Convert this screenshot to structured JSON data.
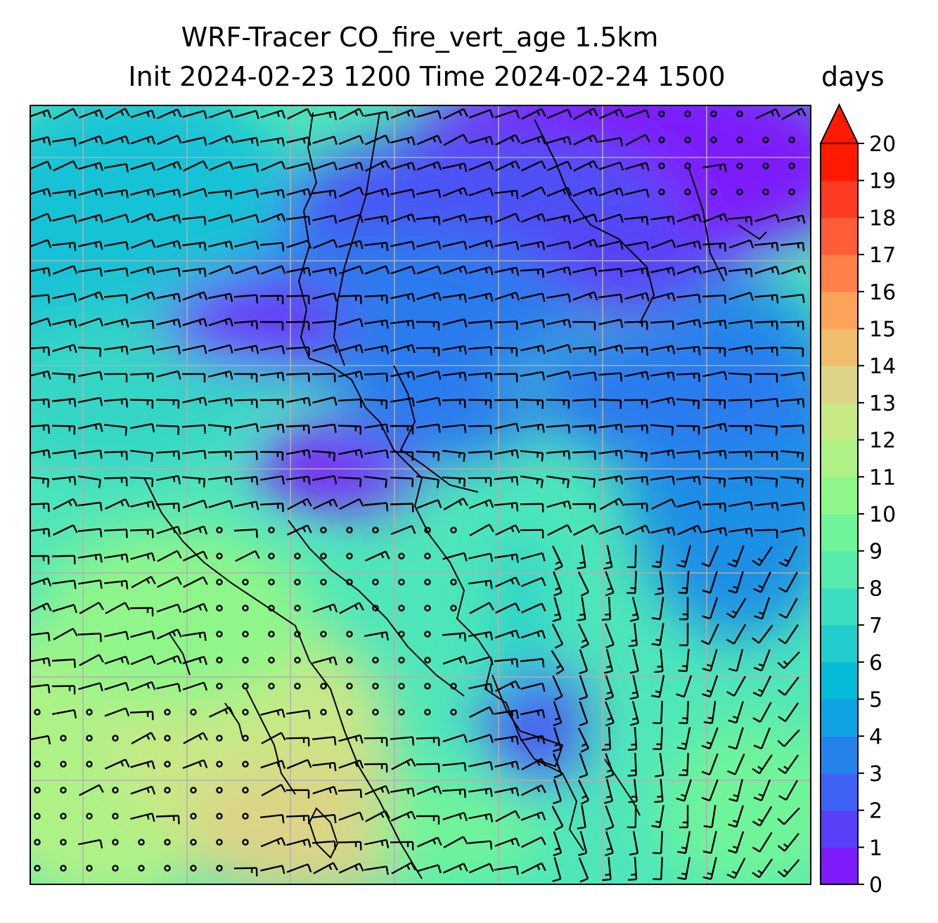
{
  "title": {
    "line1": "WRF-Tracer CO_fire_vert_age 1.5km",
    "line2": "Init 2024-02-23 1200 Time 2024-02-24 1500"
  },
  "colorbar": {
    "unit": "days",
    "min": 0,
    "max": 20,
    "step": 1,
    "extend": "max",
    "extend_color": "#ff1a00",
    "ticks": [
      "0",
      "1",
      "2",
      "3",
      "4",
      "5",
      "6",
      "7",
      "8",
      "9",
      "10",
      "11",
      "12",
      "13",
      "14",
      "15",
      "16",
      "17",
      "18",
      "19",
      "20"
    ],
    "colors": [
      "#7d1bfb",
      "#5a3ff8",
      "#3e62f3",
      "#2584eb",
      "#10a2e2",
      "#06bbd7",
      "#22cdce",
      "#3ddec0",
      "#55ecad",
      "#70f49a",
      "#8ff68a",
      "#aef286",
      "#c9e886",
      "#dcd486",
      "#f0bd6c",
      "#fca35a",
      "#fe804a",
      "#ff5c38",
      "#ff3a24",
      "#ff1a00"
    ]
  },
  "map": {
    "field": "CO_fire_vert_age",
    "level": "1.5km",
    "overlay": [
      "wind-barbs",
      "coastlines",
      "lat-lon-gridlines"
    ],
    "gridline_color": "#b0b0b0",
    "coastline_color": "#000000"
  }
}
